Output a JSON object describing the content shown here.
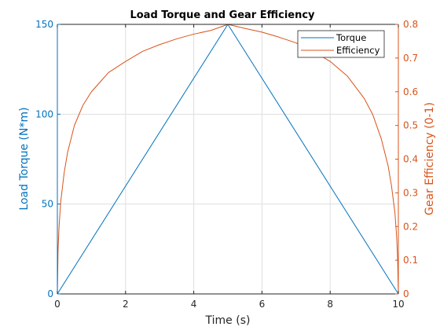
{
  "chart_data": {
    "type": "line",
    "title": "Load Torque and Gear Efficiency",
    "xlabel": "Time (s)",
    "ylabel_left": "Load Torque (N*m)",
    "ylabel_right": "Gear Efficiency (0-1)",
    "xlim": [
      0,
      10
    ],
    "ylim_left": [
      0,
      150
    ],
    "ylim_right": [
      0,
      0.8
    ],
    "x_ticks": [
      "0",
      "2",
      "4",
      "6",
      "8",
      "10"
    ],
    "y_left_ticks": [
      "0",
      "50",
      "100",
      "150"
    ],
    "y_right_ticks": [
      "0",
      "0.1",
      "0.2",
      "0.3",
      "0.4",
      "0.5",
      "0.6",
      "0.7",
      "0.8"
    ],
    "grid": true,
    "legend_position": "top-right",
    "series": [
      {
        "name": "Torque",
        "axis": "left",
        "color": "#0072bd",
        "x": [
          0,
          5,
          10
        ],
        "y": [
          0,
          150,
          0
        ]
      },
      {
        "name": "Efficiency",
        "axis": "right",
        "color": "#d95319",
        "x": [
          0,
          0.02,
          0.05,
          0.1,
          0.2,
          0.3,
          0.5,
          0.75,
          1,
          1.5,
          2,
          2.5,
          3,
          3.5,
          4,
          4.5,
          5,
          5.5,
          6,
          6.5,
          7,
          7.5,
          8,
          8.5,
          9,
          9.25,
          9.5,
          9.7,
          9.8,
          9.9,
          9.95,
          9.98,
          10
        ],
        "y": [
          0.0,
          0.13,
          0.2,
          0.275,
          0.36,
          0.42,
          0.5,
          0.56,
          0.6,
          0.657,
          0.69,
          0.72,
          0.74,
          0.757,
          0.771,
          0.782,
          0.8,
          0.788,
          0.777,
          0.762,
          0.745,
          0.72,
          0.69,
          0.647,
          0.58,
          0.532,
          0.46,
          0.38,
          0.32,
          0.24,
          0.17,
          0.1,
          0.0
        ]
      }
    ]
  }
}
